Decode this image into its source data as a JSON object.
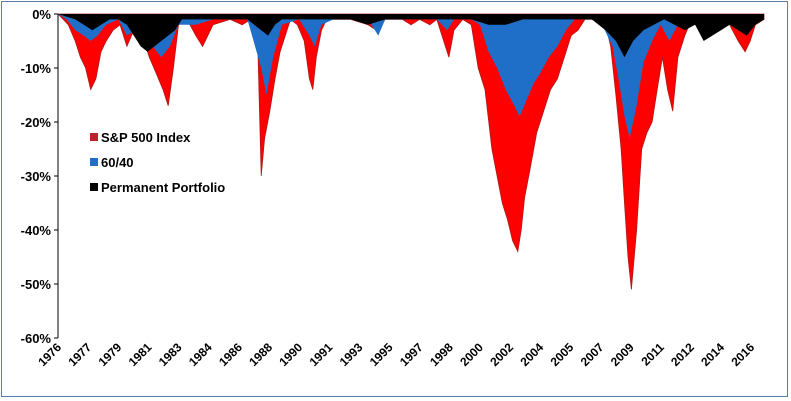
{
  "chart_data": {
    "type": "area",
    "title": "",
    "xlabel": "",
    "ylabel": "",
    "ylim": [
      -60,
      0
    ],
    "xlim": [
      1976,
      2017
    ],
    "y_ticks": [
      "0%",
      "-10%",
      "-20%",
      "-30%",
      "-40%",
      "-50%",
      "-60%"
    ],
    "y_tick_values": [
      0,
      -10,
      -20,
      -30,
      -40,
      -50,
      -60
    ],
    "x_ticks": [
      "1976",
      "1977",
      "1979",
      "1981",
      "1983",
      "1984",
      "1986",
      "1988",
      "1990",
      "1991",
      "1993",
      "1995",
      "1997",
      "1998",
      "2000",
      "2002",
      "2004",
      "2005",
      "2007",
      "2009",
      "2011",
      "2012",
      "2014",
      "2016"
    ],
    "x_tick_values": [
      1976.0,
      1977.75,
      1979.5,
      1981.25,
      1983.0,
      1984.75,
      1986.5,
      1988.25,
      1990.0,
      1991.75,
      1993.5,
      1995.25,
      1997.0,
      1998.75,
      2000.5,
      2002.25,
      2004.0,
      2005.75,
      2007.5,
      2009.25,
      2011.0,
      2012.75,
      2014.5,
      2016.25
    ],
    "grid": false,
    "legend_position": "left-middle",
    "series": [
      {
        "name": "S&P 500 Index",
        "color": "#ff0000",
        "x": [
          1976.0,
          1976.3,
          1976.6,
          1977.0,
          1977.3,
          1977.6,
          1977.9,
          1978.2,
          1978.5,
          1978.8,
          1979.2,
          1979.6,
          1980.0,
          1980.4,
          1980.9,
          1981.3,
          1981.7,
          1982.1,
          1982.4,
          1982.7,
          1983.0,
          1983.5,
          1984.0,
          1984.4,
          1985.0,
          1986.0,
          1986.7,
          1987.2,
          1987.6,
          1987.8,
          1988.0,
          1988.3,
          1988.6,
          1988.9,
          1989.2,
          1989.5,
          1989.9,
          1990.3,
          1990.6,
          1990.8,
          1991.0,
          1991.3,
          1991.6,
          1992.0,
          1993.0,
          1994.0,
          1994.5,
          1995.0,
          1996.0,
          1996.5,
          1997.0,
          1997.6,
          1998.0,
          1998.5,
          1998.7,
          1999.0,
          1999.5,
          2000.0,
          2000.4,
          2000.8,
          2001.2,
          2001.5,
          2001.8,
          2002.1,
          2002.4,
          2002.7,
          2002.9,
          2003.1,
          2003.4,
          2003.8,
          2004.2,
          2004.6,
          2005.0,
          2005.4,
          2005.8,
          2006.2,
          2006.6,
          2007.0,
          2007.4,
          2007.8,
          2008.1,
          2008.4,
          2008.7,
          2008.9,
          2009.1,
          2009.3,
          2009.6,
          2009.9,
          2010.2,
          2010.5,
          2010.8,
          2011.1,
          2011.4,
          2011.7,
          2012.0,
          2012.4,
          2012.8,
          2013.2,
          2014.0,
          2015.0,
          2015.5,
          2015.9,
          2016.2,
          2016.5,
          2017.0
        ],
        "values": [
          0,
          -1,
          -2,
          -5,
          -8,
          -10,
          -14,
          -12,
          -7,
          -5,
          -3,
          -2,
          -6,
          -3,
          -4,
          -8,
          -11,
          -14,
          -17,
          -10,
          -2,
          -1,
          -4,
          -6,
          -2,
          -1,
          -2,
          -1,
          -5,
          -30,
          -23,
          -18,
          -12,
          -7,
          -4,
          -1,
          -2,
          -5,
          -12,
          -14,
          -8,
          -3,
          -1,
          -1,
          -1,
          -2,
          -3,
          -1,
          -1,
          -2,
          -1,
          -2,
          -1,
          -6,
          -8,
          -3,
          -1,
          -2,
          -10,
          -14,
          -25,
          -30,
          -35,
          -38,
          -42,
          -44,
          -40,
          -34,
          -29,
          -22,
          -18,
          -14,
          -12,
          -8,
          -4,
          -3,
          -1,
          -1,
          -1,
          -2,
          -6,
          -15,
          -25,
          -35,
          -45,
          -51,
          -40,
          -25,
          -22,
          -20,
          -14,
          -8,
          -14,
          -18,
          -8,
          -4,
          -1,
          -2,
          -1,
          -2,
          -5,
          -7,
          -5,
          -2,
          -1
        ]
      },
      {
        "name": "60/40",
        "color": "#1f6fc8",
        "x": [
          1976.0,
          1976.5,
          1977.0,
          1977.5,
          1977.9,
          1978.3,
          1978.8,
          1979.5,
          1980.0,
          1980.5,
          1981.0,
          1981.5,
          1982.0,
          1982.5,
          1983.0,
          1984.0,
          1985.0,
          1986.0,
          1987.0,
          1987.8,
          1988.1,
          1988.5,
          1989.0,
          1990.0,
          1990.6,
          1990.9,
          1991.3,
          1992.0,
          1994.0,
          1994.6,
          1995.0,
          1997.0,
          1998.0,
          1998.6,
          1999.0,
          2000.0,
          2000.5,
          2001.0,
          2001.5,
          2002.0,
          2002.5,
          2002.8,
          2003.2,
          2003.6,
          2004.0,
          2004.5,
          2005.0,
          2005.5,
          2006.0,
          2007.0,
          2007.6,
          2008.2,
          2008.6,
          2008.9,
          2009.2,
          2009.6,
          2010.0,
          2010.5,
          2011.0,
          2011.5,
          2012.0,
          2013.0,
          2014.0,
          2015.0,
          2015.8,
          2016.3,
          2017.0
        ],
        "values": [
          0,
          -1,
          -3,
          -4,
          -5,
          -4,
          -2,
          -1,
          -4,
          -3,
          -4,
          -6,
          -8,
          -6,
          -2,
          -2,
          -1,
          -1,
          -1,
          -10,
          -15,
          -8,
          -2,
          -1,
          -4,
          -6,
          -2,
          -1,
          -1,
          -4,
          -1,
          -1,
          -1,
          -3,
          -1,
          -1,
          -2,
          -7,
          -10,
          -14,
          -17,
          -19,
          -16,
          -13,
          -11,
          -8,
          -6,
          -3,
          -1,
          -1,
          -2,
          -6,
          -13,
          -19,
          -23,
          -17,
          -9,
          -5,
          -2,
          -5,
          -2,
          -1,
          -1,
          -1,
          -3,
          -2,
          -1
        ]
      },
      {
        "name": "Permanent Portfolio",
        "color": "#000000",
        "x": [
          1976.0,
          1977.0,
          1977.5,
          1978.0,
          1978.5,
          1979.0,
          1979.5,
          1980.0,
          1980.4,
          1980.8,
          1981.2,
          1981.6,
          1982.0,
          1982.4,
          1982.8,
          1983.2,
          1984.0,
          1985.0,
          1986.0,
          1987.0,
          1987.8,
          1988.2,
          1988.6,
          1989.0,
          1990.0,
          1991.0,
          1992.0,
          1993.0,
          1994.0,
          1995.0,
          1996.0,
          1997.0,
          1998.0,
          1999.0,
          2000.0,
          2001.0,
          2002.0,
          2003.0,
          2004.0,
          2005.0,
          2006.0,
          2007.0,
          2007.8,
          2008.4,
          2008.9,
          2009.4,
          2010.0,
          2010.6,
          2011.2,
          2011.8,
          2012.4,
          2013.0,
          2013.5,
          2014.0,
          2014.5,
          2015.0,
          2015.5,
          2016.0,
          2016.5,
          2017.0
        ],
        "values": [
          0,
          -1,
          -2,
          -3,
          -2,
          -1,
          -1,
          -2,
          -4,
          -6,
          -7,
          -6,
          -5,
          -4,
          -3,
          -1,
          -1,
          -1,
          -1,
          -1,
          -3,
          -4,
          -2,
          -1,
          -1,
          -1,
          -1,
          -1,
          -2,
          -1,
          -1,
          -1,
          -1,
          -1,
          -1,
          -2,
          -2,
          -1,
          -1,
          -1,
          -1,
          -1,
          -3,
          -5,
          -8,
          -5,
          -3,
          -2,
          -1,
          -2,
          -3,
          -2,
          -5,
          -4,
          -3,
          -2,
          -3,
          -4,
          -2,
          -1
        ]
      }
    ]
  }
}
